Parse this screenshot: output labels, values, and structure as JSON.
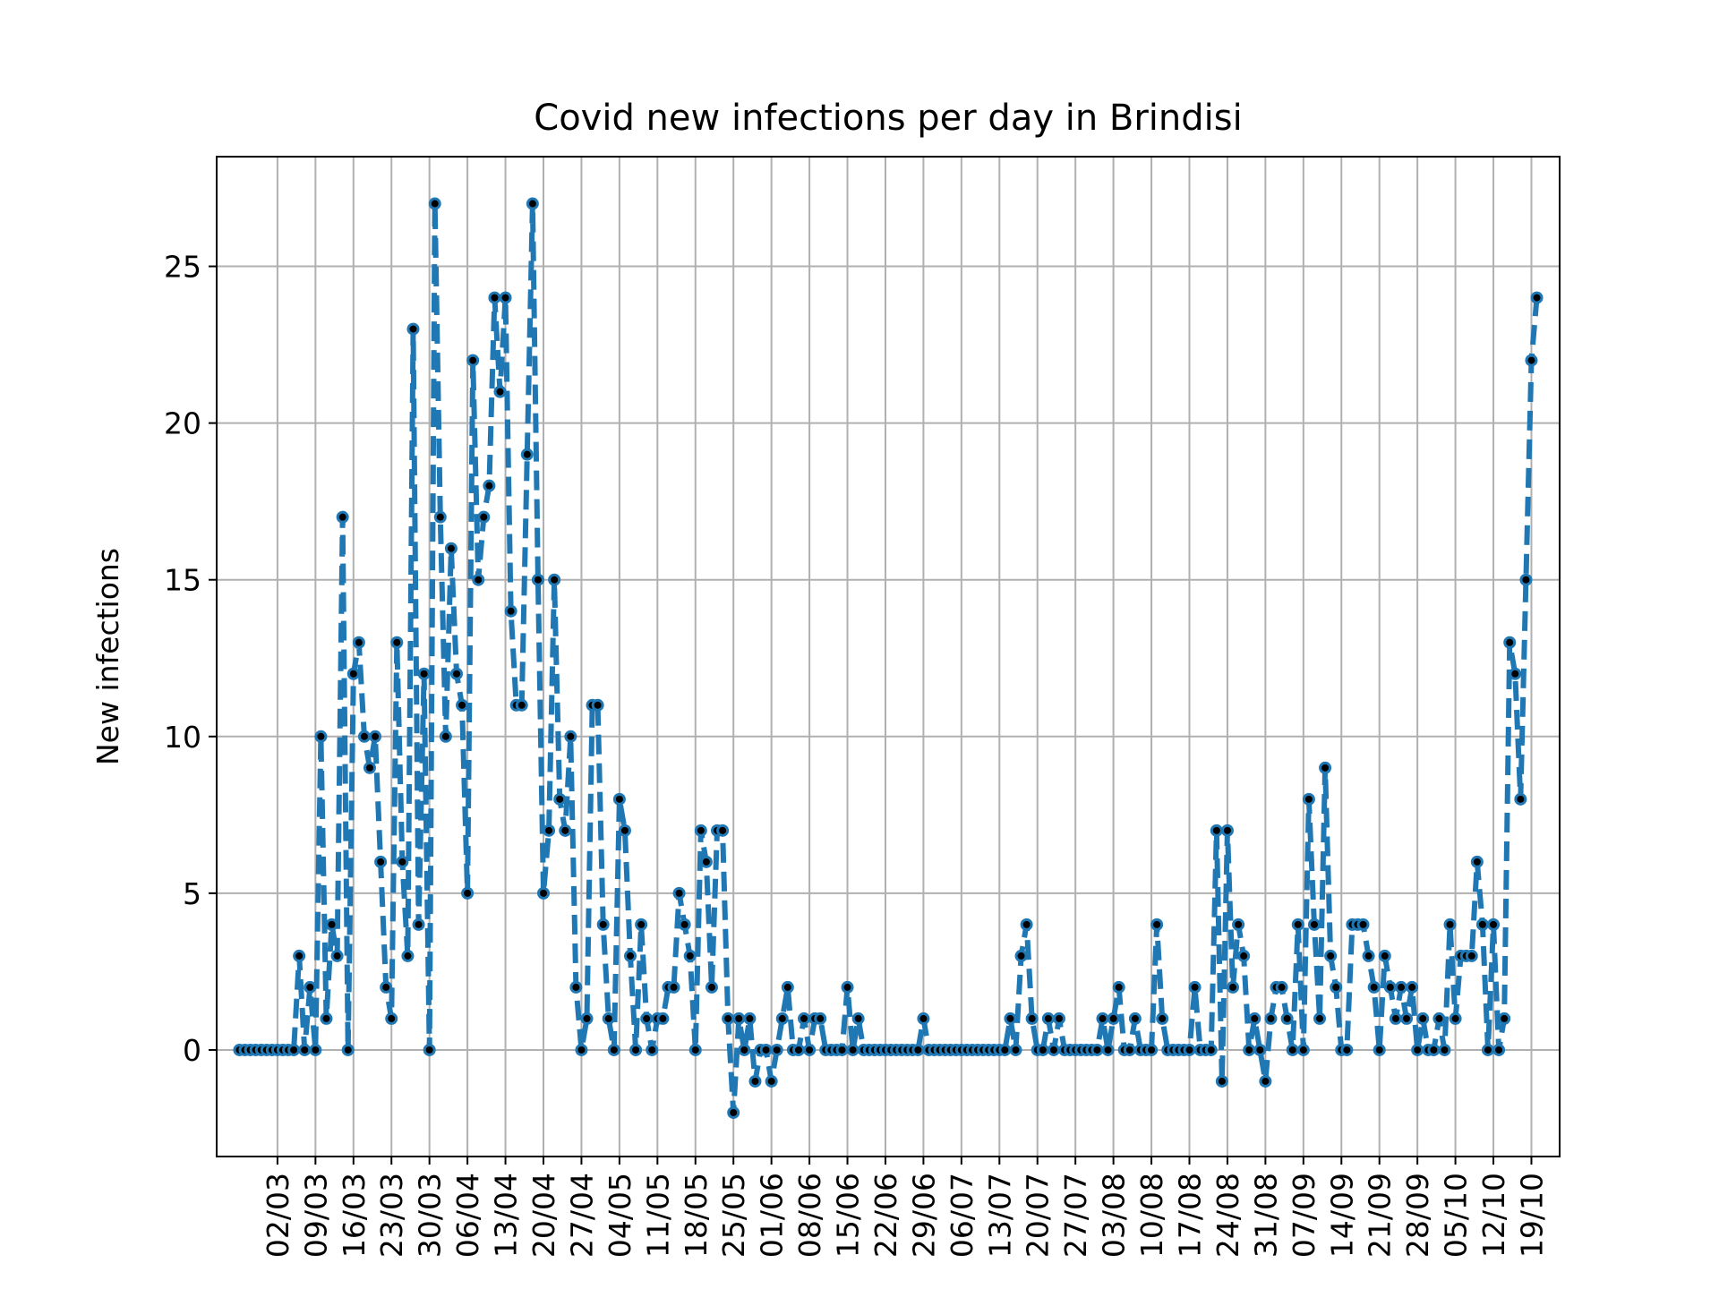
{
  "chart_data": {
    "type": "line",
    "title": "Covid new infections per day in Brindisi",
    "xlabel": "",
    "ylabel": "New infections",
    "ylim": [
      -3.4,
      28.5
    ],
    "y_ticks": [
      0,
      5,
      10,
      15,
      20,
      25
    ],
    "x_start": "2020-02-24",
    "x_end": "2020-10-19",
    "x_ticks": [
      "02/03",
      "09/03",
      "16/03",
      "23/03",
      "30/03",
      "06/04",
      "13/04",
      "20/04",
      "27/04",
      "04/05",
      "11/05",
      "18/05",
      "25/05",
      "01/06",
      "08/06",
      "15/06",
      "22/06",
      "29/06",
      "06/07",
      "13/07",
      "20/07",
      "27/07",
      "03/08",
      "10/08",
      "17/08",
      "24/08",
      "31/08",
      "07/09",
      "14/09",
      "21/09",
      "28/09",
      "05/10",
      "12/10",
      "19/10"
    ],
    "grid": true,
    "line_style": "dashed",
    "marker": "dot",
    "colors": {
      "line": "#1f77b4",
      "marker_face": "#000000",
      "grid": "#b0b0b0"
    },
    "series": [
      {
        "values": [
          0,
          0,
          0,
          0,
          0,
          0,
          0,
          0,
          0,
          0,
          0,
          3,
          0,
          2,
          0,
          10,
          1,
          4,
          3,
          17,
          0,
          12,
          13,
          10,
          9,
          10,
          6,
          2,
          1,
          13,
          6,
          3,
          23,
          4,
          12,
          0,
          27,
          17,
          10,
          16,
          12,
          11,
          5,
          22,
          15,
          17,
          18,
          24,
          21,
          24,
          14,
          11,
          11,
          19,
          27,
          15,
          5,
          7,
          15,
          8,
          7,
          10,
          2,
          0,
          1,
          11,
          11,
          4,
          1,
          0,
          8,
          7,
          3,
          0,
          4,
          1,
          0,
          1,
          1,
          2,
          2,
          5,
          4,
          3,
          0,
          7,
          6,
          2,
          7,
          7,
          1,
          -2,
          1,
          0,
          1,
          -1,
          0,
          0,
          -1,
          0,
          1,
          2,
          0,
          0,
          1,
          0,
          1,
          1,
          0,
          0,
          0,
          0,
          2,
          0,
          1,
          0,
          0,
          0,
          0,
          0,
          0,
          0,
          0,
          0,
          0,
          0,
          1,
          0,
          0,
          0,
          0,
          0,
          0,
          0,
          0,
          0,
          0,
          0,
          0,
          0,
          0,
          0,
          1,
          0,
          3,
          4,
          1,
          0,
          0,
          1,
          0,
          1,
          0,
          0,
          0,
          0,
          0,
          0,
          0,
          1,
          0,
          1,
          2,
          0,
          0,
          1,
          0,
          0,
          0,
          4,
          1,
          0,
          0,
          0,
          0,
          0,
          2,
          0,
          0,
          0,
          7,
          -1,
          7,
          2,
          4,
          3,
          0,
          1,
          0,
          -1,
          1,
          2,
          2,
          1,
          0,
          4,
          0,
          8,
          4,
          1,
          9,
          3,
          2,
          0,
          0,
          4,
          4,
          4,
          3,
          2,
          0,
          3,
          2,
          1,
          2,
          1,
          2,
          0,
          1,
          0,
          0,
          1,
          0,
          4,
          1,
          3,
          3,
          3,
          6,
          4,
          0,
          4,
          0,
          1,
          13,
          12,
          8,
          15,
          22,
          24
        ]
      }
    ]
  }
}
